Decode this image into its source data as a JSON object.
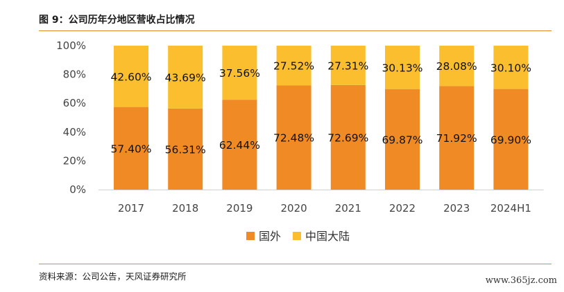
{
  "header": {
    "title": "图 9：公司历年分地区营收占比情况"
  },
  "footer": {
    "source": "资料来源：公司公告，天风证券研究所",
    "watermark": "www.365jz.com"
  },
  "chart_data": {
    "type": "bar",
    "stacked": true,
    "categories": [
      "2017",
      "2018",
      "2019",
      "2020",
      "2021",
      "2022",
      "2023",
      "2024H1"
    ],
    "series": [
      {
        "name": "国外",
        "color": "#f08a24",
        "values": [
          57.4,
          56.31,
          62.44,
          72.48,
          72.69,
          69.87,
          71.92,
          69.9
        ],
        "labels": [
          "57.40%",
          "56.31%",
          "62.44%",
          "72.48%",
          "72.69%",
          "69.87%",
          "71.92%",
          "69.90%"
        ]
      },
      {
        "name": "中国大陆",
        "color": "#fbbe2e",
        "values": [
          42.6,
          43.69,
          37.56,
          27.52,
          27.31,
          30.13,
          28.08,
          30.1
        ],
        "labels": [
          "42.60%",
          "43.69%",
          "37.56%",
          "27.52%",
          "27.31%",
          "30.13%",
          "28.08%",
          "30.10%"
        ]
      }
    ],
    "ylim": [
      0,
      100
    ],
    "yticks": [
      "0%",
      "20%",
      "40%",
      "60%",
      "80%",
      "100%"
    ],
    "grid": false,
    "legend": "bottom-center"
  }
}
